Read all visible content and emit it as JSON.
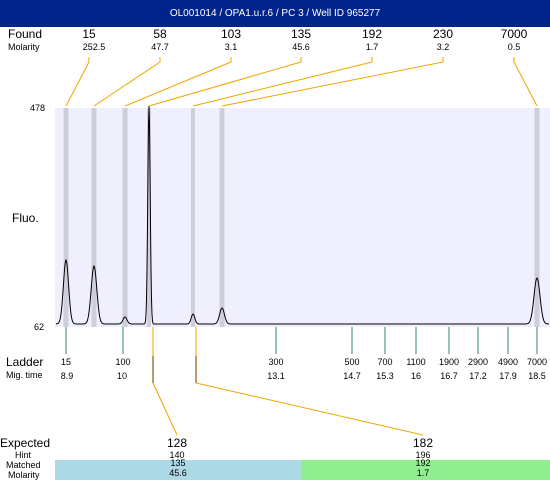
{
  "title": "OL001014 / OPA1.u.r.6 / PC 3 / Well ID 965277",
  "labels": {
    "found": "Found",
    "molarity": "Molarity",
    "fluo": "Fluo.",
    "ladder": "Ladder",
    "mig_time": "Mig. time",
    "expected": "Expected",
    "hint": "Hint",
    "matched": "Matched",
    "molarity2": "Molarity"
  },
  "y_axis": {
    "max": "478",
    "min": "62"
  },
  "found_peaks": [
    {
      "size": "15",
      "molarity": "252.5"
    },
    {
      "size": "58",
      "molarity": "47.7"
    },
    {
      "size": "103",
      "molarity": "3.1"
    },
    {
      "size": "135",
      "molarity": "45.6"
    },
    {
      "size": "192",
      "molarity": "1.7"
    },
    {
      "size": "230",
      "molarity": "3.2"
    },
    {
      "size": "7000",
      "molarity": "0.5"
    }
  ],
  "ladder": [
    {
      "size": "15",
      "time": "8.9"
    },
    {
      "size": "100",
      "time": "10"
    },
    {
      "size": "300",
      "time": "13.1"
    },
    {
      "size": "500",
      "time": "14.7"
    },
    {
      "size": "700",
      "time": "15.3"
    },
    {
      "size": "1100",
      "time": "16"
    },
    {
      "size": "1900",
      "time": "16.7"
    },
    {
      "size": "2900",
      "time": "17.2"
    },
    {
      "size": "4900",
      "time": "17.9"
    },
    {
      "size": "7000",
      "time": "18.5"
    }
  ],
  "expected": [
    {
      "expected": "128",
      "hint": "140",
      "matched": "135",
      "molarity": "45.6",
      "color": "#add8e6"
    },
    {
      "expected": "182",
      "hint": "196",
      "matched": "192",
      "molarity": "1.7",
      "color": "#90ee90"
    }
  ],
  "colors": {
    "title_bg": "#00258a",
    "plot_bg": "#efeffd",
    "peak_band": "#cfcfdc",
    "connector": "#f0a500",
    "ladder_tick": "#2e8b57",
    "expected_tick": "#1515c8"
  }
}
